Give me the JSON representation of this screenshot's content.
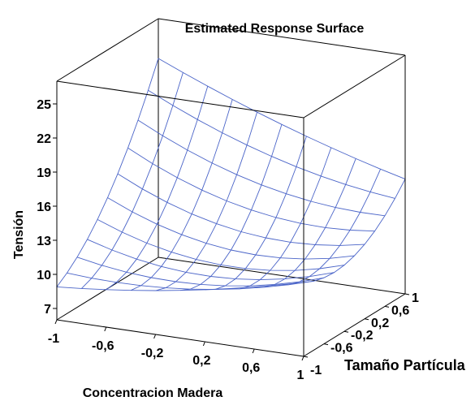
{
  "chart_data": {
    "type": "surface",
    "title": "Estimated Response Surface",
    "xlabel": "Concentracion Madera",
    "ylabel": "Tamaño Partícula",
    "zlabel": "Tensión",
    "x_ticks": [
      "-1",
      "-0,6",
      "-0,2",
      "0,2",
      "0,6",
      "1"
    ],
    "y_ticks": [
      "-1",
      "-0,6",
      "-0,2",
      "0,2",
      "0,6",
      "1"
    ],
    "z_ticks": [
      "7",
      "10",
      "13",
      "16",
      "19",
      "22",
      "25"
    ],
    "xlim": [
      -1,
      1
    ],
    "ylim": [
      -1,
      1
    ],
    "zlim": [
      6,
      27
    ],
    "grid_size": 10,
    "surface": {
      "corners": {
        "x_-1_y_-1": 8.9,
        "x_-1_y_1": 23.5,
        "x_1_y_-1": 12.5,
        "x_1_y_1": 16.1
      },
      "mid_edges": {
        "x_0_y_-1": 10.2,
        "x_-1_y_0": 14.0,
        "x_0_y_0": 11.0
      }
    },
    "colors": {
      "mesh": "#4a64c8",
      "box": "#000000"
    }
  }
}
